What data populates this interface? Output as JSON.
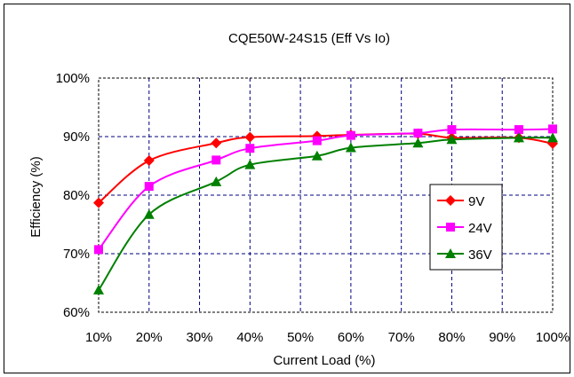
{
  "chart_data": {
    "type": "line",
    "title": "CQE50W-24S15  (Eff Vs Io)",
    "xlabel": "Current Load (%)",
    "ylabel": "Efficiency (%)",
    "xlim": [
      10,
      100
    ],
    "ylim": [
      60,
      100
    ],
    "x_ticks": [
      10,
      20,
      30,
      40,
      50,
      60,
      70,
      80,
      90,
      100
    ],
    "y_ticks": [
      60,
      70,
      80,
      90,
      100
    ],
    "x_tick_labels": [
      "10%",
      "20%",
      "30%",
      "40%",
      "50%",
      "60%",
      "70%",
      "80%",
      "90%",
      "100%"
    ],
    "y_tick_labels": [
      "60%",
      "70%",
      "80%",
      "90%",
      "100%"
    ],
    "grid": true,
    "legend_position": "right",
    "series": [
      {
        "name": "9V",
        "color": "#ff0000",
        "marker": "diamond",
        "x": [
          10,
          20,
          33.3,
          40,
          53.3,
          60,
          73.3,
          80,
          93.3,
          100
        ],
        "y": [
          78.7,
          85.9,
          88.9,
          89.9,
          90.1,
          90.3,
          90.5,
          89.8,
          89.8,
          88.8
        ]
      },
      {
        "name": "24V",
        "color": "#ff00ff",
        "marker": "square",
        "x": [
          10,
          20,
          33.3,
          40,
          53.3,
          60,
          73.3,
          80,
          93.3,
          100
        ],
        "y": [
          70.7,
          81.5,
          86.0,
          88.0,
          89.3,
          90.2,
          90.6,
          91.2,
          91.2,
          91.3
        ]
      },
      {
        "name": "36V",
        "color": "#008000",
        "marker": "triangle",
        "x": [
          10,
          20,
          33.3,
          40,
          53.3,
          60,
          73.3,
          80,
          93.3,
          100
        ],
        "y": [
          63.8,
          76.7,
          82.3,
          85.2,
          86.7,
          88.1,
          88.9,
          89.5,
          89.8,
          89.8
        ]
      }
    ]
  }
}
